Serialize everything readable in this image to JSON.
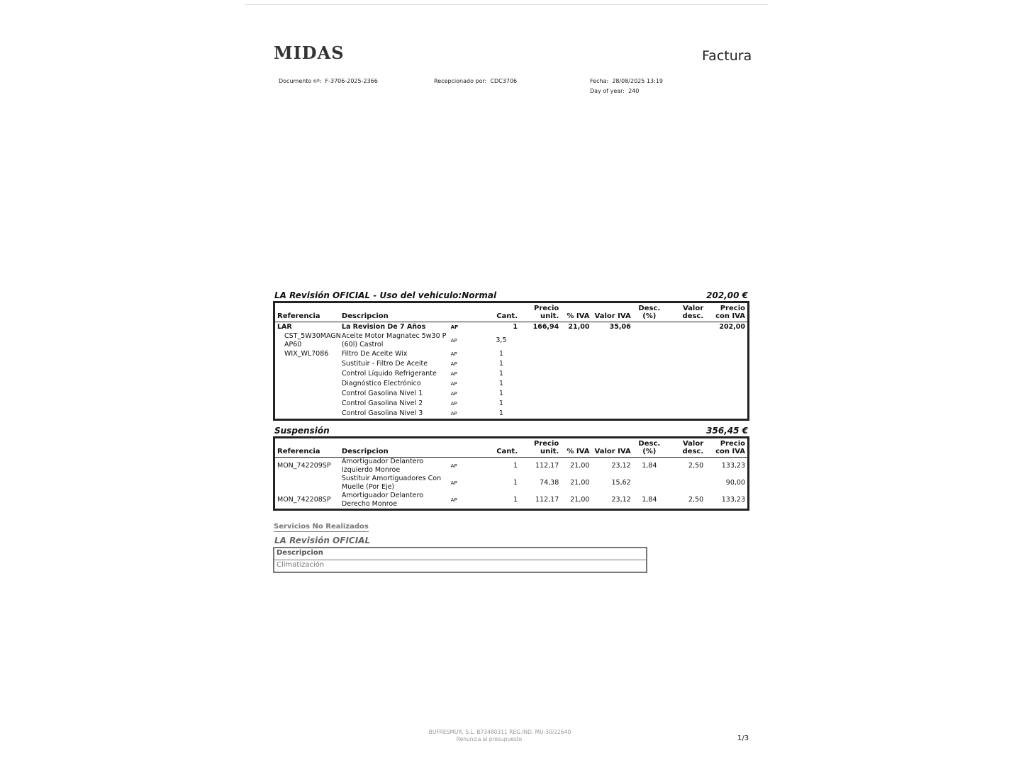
{
  "header": {
    "logo": "MIDAS",
    "title": "Factura",
    "documento_label": "Documento nº:",
    "documento": "F-3706-2025-2366",
    "recep_label": "Recepcionado por:",
    "recep": "CDC3706",
    "fecha_label": "Fecha:",
    "fecha": "28/08/2025 13:19",
    "doy_label": "Day of year:",
    "doy": "240"
  },
  "columns": [
    "Referencia",
    "Descripcion",
    "",
    "Cant.",
    "Precio unit.",
    "% IVA",
    "Valor IVA",
    "Desc. (%)",
    "Valor desc.",
    "Precio con IVA"
  ],
  "sections": [
    {
      "title": "LA Revisión OFICIAL - Uso del vehiculo:Normal",
      "total": "202,00 €",
      "rows": [
        {
          "ref": "LAR",
          "desc": "La Revision De 7 Años",
          "ap": "AP",
          "cant": "1",
          "precio": "166,94",
          "iva": "21,00",
          "valor_iva": "35,06",
          "desc_pct": "",
          "valor_desc": "",
          "total": "202,00",
          "bold": true
        },
        {
          "ref": "CST_5W30MAGN AP60",
          "desc": "Aceite Motor Magnatec 5w30 P (60l) Castrol",
          "ap": "AP",
          "cant": "3,5",
          "sub": true
        },
        {
          "ref": "WIX_WL7086",
          "desc": "Filtro De Aceite Wix",
          "ap": "AP",
          "cant": "1",
          "sub": true
        },
        {
          "ref": "",
          "desc": "Sustituir - Filtro De Aceite",
          "ap": "AP",
          "cant": "1",
          "sub": true
        },
        {
          "ref": "",
          "desc": "Control Líquido Refrigerante",
          "ap": "AP",
          "cant": "1",
          "sub": true
        },
        {
          "ref": "",
          "desc": "Diagnóstico Electrónico",
          "ap": "AP",
          "cant": "1",
          "sub": true
        },
        {
          "ref": "",
          "desc": "Control Gasolina Nivel 1",
          "ap": "AP",
          "cant": "1",
          "sub": true
        },
        {
          "ref": "",
          "desc": "Control Gasolina Nivel 2",
          "ap": "AP",
          "cant": "1",
          "sub": true
        },
        {
          "ref": "",
          "desc": "Control Gasolina Nivel 3",
          "ap": "AP",
          "cant": "1",
          "sub": true
        }
      ]
    },
    {
      "title": "Suspensión",
      "total": "356,45 €",
      "rows": [
        {
          "ref": "MON_742209SP",
          "desc": "Amortiguador Delantero Izquierdo Monroe",
          "ap": "AP",
          "cant": "1",
          "precio": "112,17",
          "iva": "21,00",
          "valor_iva": "23,12",
          "desc_pct": "1,84",
          "valor_desc": "2,50",
          "total": "133,23"
        },
        {
          "ref": "",
          "desc": "Sustituir Amortiguadores Con Muelle (Por Eje)",
          "ap": "AP",
          "cant": "1",
          "precio": "74,38",
          "iva": "21,00",
          "valor_iva": "15,62",
          "desc_pct": "",
          "valor_desc": "",
          "total": "90,00"
        },
        {
          "ref": "MON_742208SP",
          "desc": "Amortiguador Delantero Derecho Monroe",
          "ap": "AP",
          "cant": "1",
          "precio": "112,17",
          "iva": "21,00",
          "valor_iva": "23,12",
          "desc_pct": "1,84",
          "valor_desc": "2,50",
          "total": "133,23"
        }
      ]
    }
  ],
  "not_done": {
    "label": "Servicios No Realizados",
    "group": "LA Revisión OFICIAL",
    "header": "Descripcion",
    "items": [
      "Climatización"
    ]
  },
  "footer": {
    "company": "BUFRESMUR, S.L.  B73480311  REG.IND. MU-30/22640",
    "note": "Renuncia al presupuesto",
    "page": "1/3"
  }
}
